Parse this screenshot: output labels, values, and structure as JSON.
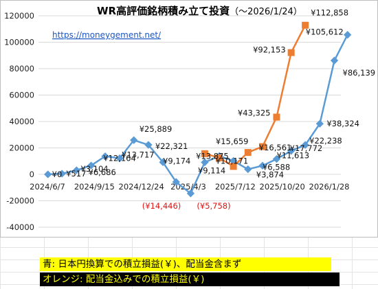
{
  "chart_data": {
    "type": "line",
    "title": "WR高評価銘柄積み立て投資",
    "subtitle": "（〜2026/1/24）",
    "url_text": "https://moneygement.net/",
    "x_tick_labels": [
      "2024/6/7",
      "2024/9/15",
      "2024/12/24",
      "2025/4/3",
      "2025/7/12",
      "2025/10/20",
      "2026/1/28"
    ],
    "y_ticks": [
      -40000,
      -20000,
      0,
      20000,
      40000,
      60000,
      80000,
      100000,
      120000
    ],
    "ylim": [
      -40000,
      120000
    ],
    "series": [
      {
        "color": "#5b9bd5",
        "marker": "diamond",
        "points": [
          {
            "x": "2024-06-08",
            "y": 0,
            "label": "¥0"
          },
          {
            "x": "2024-07-08",
            "y": 517,
            "label": "¥517"
          },
          {
            "x": "2024-08-08",
            "y": 3104,
            "label": "¥3,104"
          },
          {
            "x": "2024-09-08",
            "y": 6686,
            "label": "¥6,686"
          },
          {
            "x": "2024-10-08",
            "y": 13717,
            "label": "¥13,717"
          },
          {
            "x": "2024-11-08",
            "y": 12164,
            "label": "¥12,164"
          },
          {
            "x": "2024-12-08",
            "y": 25889,
            "label": "¥25,889"
          },
          {
            "x": "2025-01-08",
            "y": 22321,
            "label": "¥22,321"
          },
          {
            "x": "2025-02-08",
            "y": 9174,
            "label": "¥9,174"
          },
          {
            "x": "2025-03-08",
            "y": -5758,
            "label": "(¥5,758)"
          },
          {
            "x": "2025-04-08",
            "y": -14446,
            "label": "(¥14,446)"
          },
          {
            "x": "2025-05-08",
            "y": 9114,
            "label": "¥9,114"
          },
          {
            "x": "2025-06-08",
            "y": 13875,
            "label": "¥13,875"
          },
          {
            "x": "2025-07-08",
            "y": 10171,
            "label": "¥10,171"
          },
          {
            "x": "2025-08-08",
            "y": 3874,
            "label": "¥3,874"
          },
          {
            "x": "2025-09-08",
            "y": 6588,
            "label": "¥6,588"
          },
          {
            "x": "2025-10-08",
            "y": 11613,
            "label": "¥11,613"
          },
          {
            "x": "2025-11-08",
            "y": 17772,
            "label": "¥17,772"
          },
          {
            "x": "2025-12-08",
            "y": 22238,
            "label": "¥22,238"
          },
          {
            "x": "2026-01-08",
            "y": 38324,
            "label": "¥38,324"
          },
          {
            "x": "2026-02-08",
            "y": 86139,
            "label": "¥86,139"
          },
          {
            "x": "2026-03-08",
            "y": 105612,
            "label": "¥105,612"
          }
        ]
      },
      {
        "color": "#ed7d31",
        "marker": "square",
        "points": [
          {
            "x": "2025-05-08",
            "y": 15659,
            "label": "¥15,659"
          },
          {
            "x": "2025-06-08",
            "y": 12500
          },
          {
            "x": "2025-07-08",
            "y": 6000
          },
          {
            "x": "2025-08-08",
            "y": 16561,
            "label": "¥16,561"
          },
          {
            "x": "2025-09-08",
            "y": 21000
          },
          {
            "x": "2025-10-08",
            "y": 43325,
            "label": "¥43,325"
          },
          {
            "x": "2025-11-08",
            "y": 92153,
            "label": "¥92,153"
          },
          {
            "x": "2025-12-08",
            "y": 112858,
            "label": "¥112,858"
          }
        ]
      }
    ],
    "legend": [
      {
        "text": "青: 日本円換算での積立損益(￥)、配当金含まず",
        "background": "#ffff00",
        "color": "#000000"
      },
      {
        "text": "オレンジ: 配当金込みでの積立損益(￥)",
        "background": "#000000",
        "color": "#ffff00"
      }
    ]
  }
}
